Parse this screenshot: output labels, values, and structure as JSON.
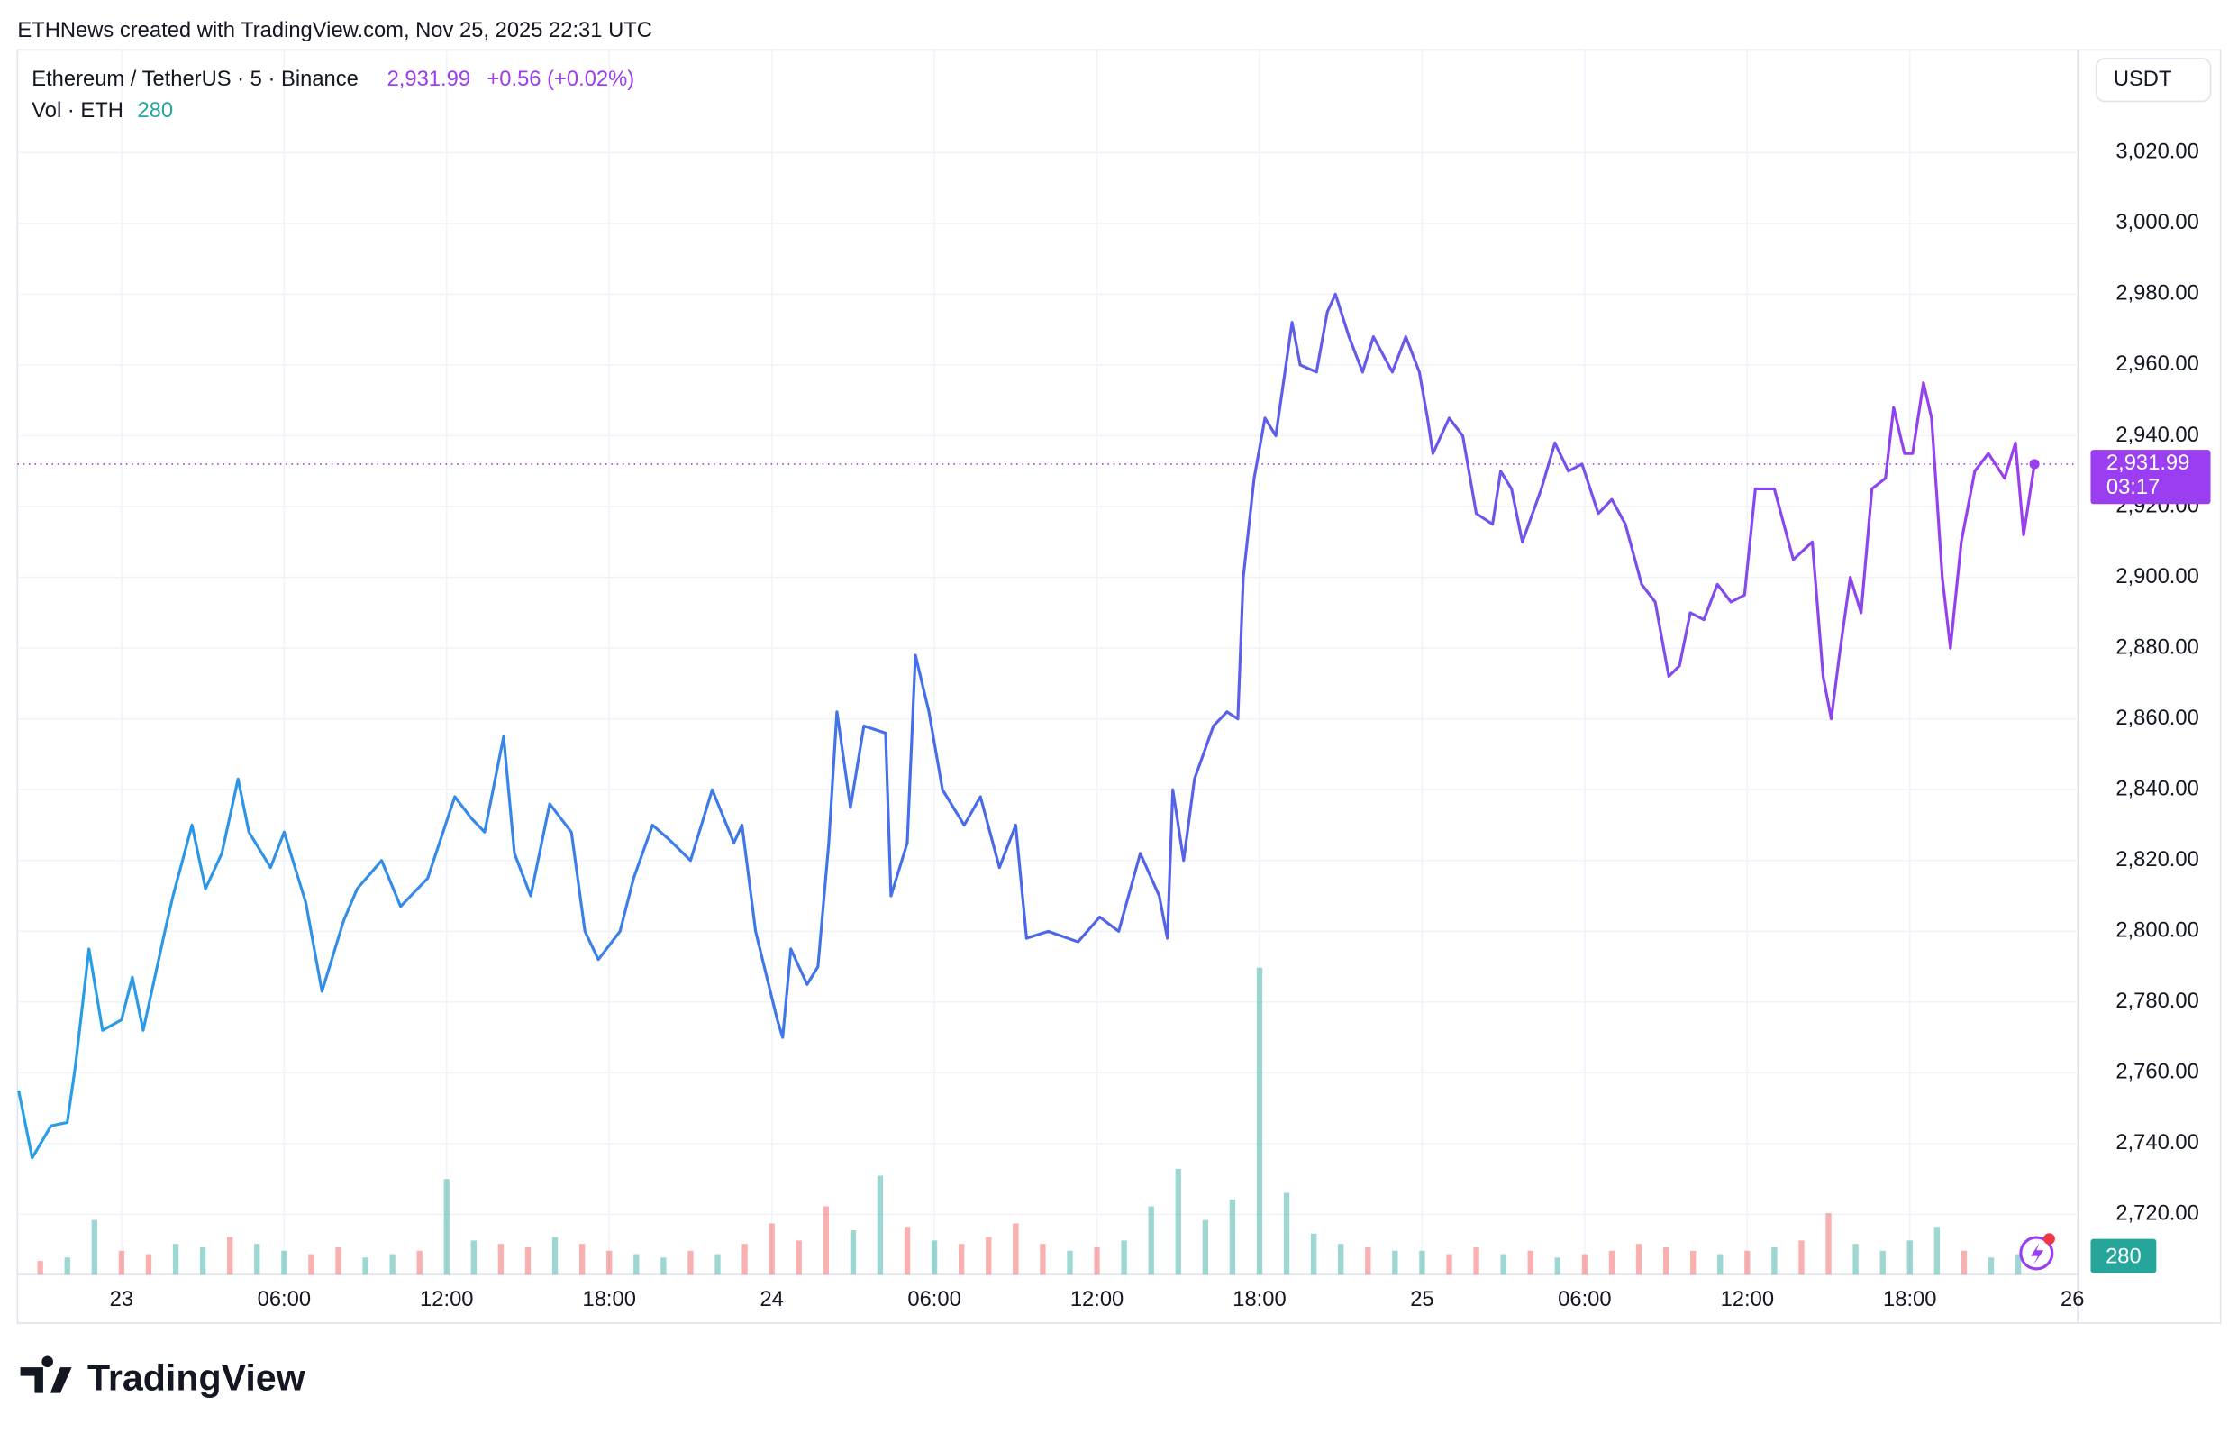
{
  "header": {
    "credit": "ETHNews created with TradingView.com, Nov 25, 2025 22:31 UTC",
    "logo": "TradingView"
  },
  "chart_data": {
    "type": "line",
    "symbol": "Ethereum / TetherUS · 5 · Binance",
    "price_label": "2,931.99",
    "change_label": "+0.56 (+0.02%)",
    "volume_title": "Vol · ETH",
    "volume_label": "280",
    "currency": "USDT",
    "last_price_label": "2,931.99",
    "countdown": "03:17",
    "colors": [
      "#26a0e6",
      "#4a68e8",
      "#9b3df0"
    ],
    "series": [
      {
        "name": "ETH/USDT",
        "x": [
          -3.8,
          -3.3,
          -2.6,
          -2.0,
          -1.7,
          -1.2,
          -0.7,
          0,
          0.4,
          0.8,
          1.6,
          1.9,
          2.6,
          3.1,
          3.7,
          4.3,
          4.7,
          5.5,
          6.0,
          6.8,
          7.4,
          8.2,
          8.7,
          9.6,
          10.3,
          11.3,
          12.3,
          12.9,
          13.4,
          14.1,
          14.5,
          15.1,
          15.8,
          16.6,
          17.1,
          17.6,
          18.4,
          18.9,
          19.6,
          20.2,
          21.0,
          21.8,
          22.6,
          22.9,
          23.4,
          24.2,
          24.4,
          24.7,
          25.3,
          25.7,
          26.1,
          26.4,
          26.9,
          27.4,
          28.2,
          28.4,
          29.0,
          29.3,
          29.8,
          30.3,
          31.1,
          31.7,
          32.4,
          33.0,
          33.4,
          34.2,
          35.3,
          36.1,
          36.8,
          37.6,
          38.3,
          38.6,
          38.8,
          39.2,
          39.6,
          40.3,
          40.8,
          41.2,
          41.4,
          41.8,
          42.2,
          42.6,
          43.2,
          43.5,
          44.1,
          44.5,
          44.8,
          45.3,
          45.8,
          46.2,
          46.9,
          47.4,
          47.9,
          48.2,
          48.4,
          49.0,
          49.5,
          50.0,
          50.6,
          50.9,
          51.3,
          51.7,
          52.4,
          52.9,
          53.4,
          53.9,
          54.5,
          55.0,
          55.5,
          56.1,
          56.6,
          57.1,
          57.5,
          57.9,
          58.4,
          58.9,
          59.4,
          59.9,
          60.3,
          61.0,
          61.7,
          62.4,
          62.8,
          63.1,
          63.4,
          63.8,
          64.2,
          64.6,
          65.1,
          65.4,
          65.8,
          66.1,
          66.5,
          66.8,
          67.2,
          67.5,
          67.9,
          68.4,
          68.9,
          69.5,
          69.9,
          70.2,
          70.4,
          70.6
        ],
        "values": [
          2755,
          2736,
          2745,
          2746,
          2762,
          2795,
          2772,
          2775,
          2787,
          2772,
          2800,
          2810,
          2830,
          2812,
          2822,
          2843,
          2828,
          2818,
          2828,
          2808,
          2783,
          2803,
          2812,
          2820,
          2807,
          2815,
          2838,
          2832,
          2828,
          2855,
          2822,
          2810,
          2836,
          2828,
          2800,
          2792,
          2800,
          2815,
          2830,
          2826,
          2820,
          2840,
          2825,
          2830,
          2800,
          2775,
          2770,
          2795,
          2785,
          2790,
          2825,
          2862,
          2835,
          2858,
          2856,
          2810,
          2825,
          2878,
          2862,
          2840,
          2830,
          2838,
          2818,
          2830,
          2798,
          2800,
          2797,
          2804,
          2800,
          2822,
          2810,
          2798,
          2840,
          2820,
          2843,
          2858,
          2862,
          2860,
          2900,
          2928,
          2945,
          2940,
          2972,
          2960,
          2958,
          2975,
          2980,
          2968,
          2958,
          2968,
          2958,
          2968,
          2958,
          2945,
          2935,
          2945,
          2940,
          2918,
          2915,
          2930,
          2925,
          2910,
          2925,
          2938,
          2930,
          2932,
          2918,
          2922,
          2915,
          2898,
          2893,
          2872,
          2875,
          2890,
          2888,
          2898,
          2893,
          2895,
          2925,
          2925,
          2905,
          2910,
          2872,
          2860,
          2878,
          2900,
          2890,
          2925,
          2928,
          2948,
          2935,
          2935,
          2955,
          2945,
          2900,
          2880,
          2910,
          2930,
          2935,
          2928,
          2938,
          2912,
          2922,
          2931.99
        ]
      }
    ],
    "volume": {
      "x": [
        -3,
        -2,
        -1,
        0,
        1,
        2,
        3,
        4,
        5,
        6,
        7,
        8,
        9,
        10,
        11,
        12,
        13,
        14,
        15,
        16,
        17,
        18,
        19,
        20,
        21,
        22,
        23,
        24,
        25,
        26,
        27,
        28,
        29,
        30,
        31,
        32,
        33,
        34,
        35,
        36,
        37,
        38,
        39,
        40,
        41,
        42,
        43,
        44,
        45,
        46,
        47,
        48,
        49,
        50,
        51,
        52,
        53,
        54,
        55,
        56,
        57,
        58,
        59,
        60,
        61,
        62,
        63,
        64,
        65,
        66,
        67,
        68,
        69,
        70
      ],
      "values": [
        400,
        500,
        1600,
        700,
        600,
        900,
        800,
        1100,
        900,
        700,
        600,
        800,
        500,
        600,
        700,
        2800,
        1000,
        900,
        800,
        1100,
        900,
        700,
        600,
        500,
        700,
        600,
        900,
        1500,
        1000,
        2000,
        1300,
        2900,
        1400,
        1000,
        900,
        1100,
        1500,
        900,
        700,
        800,
        1000,
        2000,
        3100,
        1600,
        2200,
        9000,
        2400,
        1200,
        900,
        800,
        700,
        700,
        600,
        800,
        600,
        700,
        500,
        600,
        700,
        900,
        800,
        700,
        600,
        700,
        800,
        1000,
        1800,
        900,
        700,
        1000,
        1400,
        700,
        500,
        600
      ]
    },
    "xlim": [
      -3.84,
      72.2
    ],
    "xticks": [
      {
        "value": 0,
        "label": "23"
      },
      {
        "value": 6,
        "label": "06:00"
      },
      {
        "value": 12,
        "label": "12:00"
      },
      {
        "value": 18,
        "label": "18:00"
      },
      {
        "value": 24,
        "label": "24"
      },
      {
        "value": 30,
        "label": "06:00"
      },
      {
        "value": 36,
        "label": "12:00"
      },
      {
        "value": 42,
        "label": "18:00"
      },
      {
        "value": 48,
        "label": "25"
      },
      {
        "value": 54,
        "label": "06:00"
      },
      {
        "value": 60,
        "label": "12:00"
      },
      {
        "value": 66,
        "label": "18:00"
      },
      {
        "value": 72,
        "label": "26"
      }
    ],
    "ylim": [
      2703,
      3049
    ],
    "yticks": [
      {
        "value": 2720,
        "label": "2,720.00"
      },
      {
        "value": 2740,
        "label": "2,740.00"
      },
      {
        "value": 2760,
        "label": "2,760.00"
      },
      {
        "value": 2780,
        "label": "2,780.00"
      },
      {
        "value": 2800,
        "label": "2,800.00"
      },
      {
        "value": 2820,
        "label": "2,820.00"
      },
      {
        "value": 2840,
        "label": "2,840.00"
      },
      {
        "value": 2860,
        "label": "2,860.00"
      },
      {
        "value": 2880,
        "label": "2,880.00"
      },
      {
        "value": 2900,
        "label": "2,900.00"
      },
      {
        "value": 2920,
        "label": "2,920.00"
      },
      {
        "value": 2940,
        "label": "2,940.00"
      },
      {
        "value": 2960,
        "label": "2,960.00"
      },
      {
        "value": 2980,
        "label": "2,980.00"
      },
      {
        "value": 3000,
        "label": "3,000.00"
      },
      {
        "value": 3020,
        "label": "3,020.00"
      }
    ],
    "grid": true
  }
}
